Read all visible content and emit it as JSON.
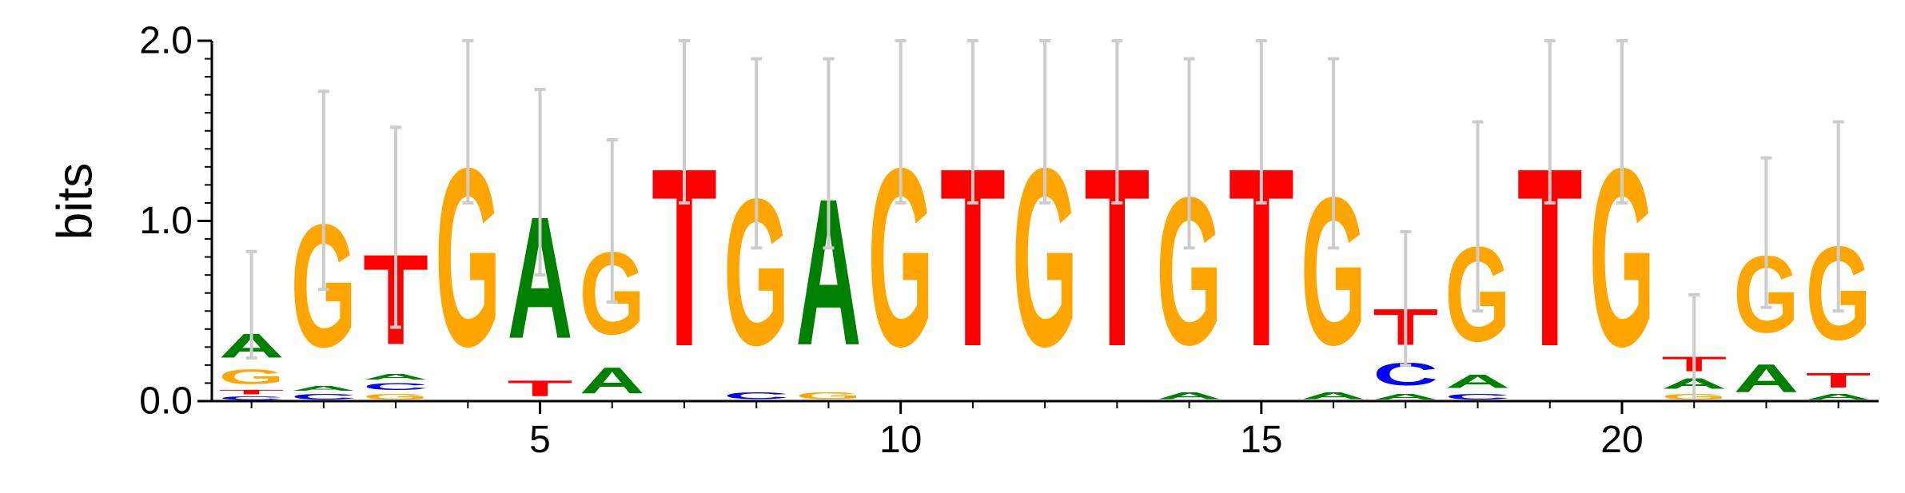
{
  "chart_data": {
    "type": "sequence-logo",
    "ylabel": "bits",
    "ylim": [
      0,
      2.0
    ],
    "yticks": [
      "0.0",
      "1.0",
      "2.0"
    ],
    "xticks": [
      5,
      10,
      15,
      20
    ],
    "colors": {
      "A": "#008000",
      "C": "#0000ff",
      "G": "#ffa500",
      "T": "#ff0000"
    },
    "error_bar_color": "#cccccc",
    "positions": [
      {
        "pos": 1,
        "letters": [
          {
            "l": "C",
            "h": 0.03
          },
          {
            "l": "T",
            "h": 0.04
          },
          {
            "l": "G",
            "h": 0.13
          },
          {
            "l": "A",
            "h": 0.21
          }
        ],
        "err": [
          0.24,
          0.83
        ]
      },
      {
        "pos": 2,
        "letters": [
          {
            "l": "C",
            "h": 0.05
          },
          {
            "l": "A",
            "h": 0.04
          },
          {
            "l": "G",
            "h": 1.09
          }
        ],
        "err": [
          0.62,
          1.72
        ]
      },
      {
        "pos": 3,
        "letters": [
          {
            "l": "G",
            "h": 0.05
          },
          {
            "l": "C",
            "h": 0.06
          },
          {
            "l": "A",
            "h": 0.05
          },
          {
            "l": "T",
            "h": 0.8
          }
        ],
        "err": [
          0.41,
          1.52
        ]
      },
      {
        "pos": 4,
        "letters": [
          {
            "l": "G",
            "h": 1.58
          }
        ],
        "err": [
          1.1,
          2.0
        ]
      },
      {
        "pos": 5,
        "letters": [
          {
            "l": "T",
            "h": 0.14
          },
          {
            "l": "A",
            "h": 1.08
          }
        ],
        "err": [
          0.7,
          1.73
        ]
      },
      {
        "pos": 6,
        "letters": [
          {
            "l": "A",
            "h": 0.23
          },
          {
            "l": "G",
            "h": 0.73
          }
        ],
        "err": [
          0.55,
          1.45
        ]
      },
      {
        "pos": 7,
        "letters": [
          {
            "l": "T",
            "h": 1.58
          }
        ],
        "err": [
          1.1,
          2.0
        ]
      },
      {
        "pos": 8,
        "letters": [
          {
            "l": "C",
            "h": 0.06
          },
          {
            "l": "G",
            "h": 1.3
          }
        ],
        "err": [
          0.85,
          1.9
        ]
      },
      {
        "pos": 9,
        "letters": [
          {
            "l": "G",
            "h": 0.06
          },
          {
            "l": "A",
            "h": 1.3
          }
        ],
        "err": [
          0.85,
          1.9
        ]
      },
      {
        "pos": 10,
        "letters": [
          {
            "l": "G",
            "h": 1.58
          }
        ],
        "err": [
          1.1,
          2.0
        ]
      },
      {
        "pos": 11,
        "letters": [
          {
            "l": "T",
            "h": 1.58
          }
        ],
        "err": [
          1.1,
          2.0
        ]
      },
      {
        "pos": 12,
        "letters": [
          {
            "l": "G",
            "h": 1.58
          }
        ],
        "err": [
          1.1,
          2.0
        ]
      },
      {
        "pos": 13,
        "letters": [
          {
            "l": "T",
            "h": 1.58
          }
        ],
        "err": [
          1.1,
          2.0
        ]
      },
      {
        "pos": 14,
        "letters": [
          {
            "l": "A",
            "h": 0.06
          },
          {
            "l": "G",
            "h": 1.31
          }
        ],
        "err": [
          0.85,
          1.9
        ]
      },
      {
        "pos": 15,
        "letters": [
          {
            "l": "T",
            "h": 1.58
          }
        ],
        "err": [
          1.1,
          2.0
        ]
      },
      {
        "pos": 16,
        "letters": [
          {
            "l": "A",
            "h": 0.06
          },
          {
            "l": "G",
            "h": 1.31
          }
        ],
        "err": [
          0.85,
          1.9
        ]
      },
      {
        "pos": 17,
        "letters": [
          {
            "l": "A",
            "h": 0.05
          },
          {
            "l": "C",
            "h": 0.2
          },
          {
            "l": "T",
            "h": 0.32
          }
        ],
        "err": [
          0.2,
          0.94
        ]
      },
      {
        "pos": 18,
        "letters": [
          {
            "l": "C",
            "h": 0.05
          },
          {
            "l": "A",
            "h": 0.12
          },
          {
            "l": "G",
            "h": 0.84
          }
        ],
        "err": [
          0.5,
          1.55
        ]
      },
      {
        "pos": 19,
        "letters": [
          {
            "l": "T",
            "h": 1.58
          }
        ],
        "err": [
          1.1,
          2.0
        ]
      },
      {
        "pos": 20,
        "letters": [
          {
            "l": "G",
            "h": 1.58
          }
        ],
        "err": [
          1.1,
          2.0
        ]
      },
      {
        "pos": 21,
        "letters": [
          {
            "l": "G",
            "h": 0.05
          },
          {
            "l": "A",
            "h": 0.09
          },
          {
            "l": "T",
            "h": 0.13
          }
        ],
        "err": [
          0.0,
          0.59
        ]
      },
      {
        "pos": 22,
        "letters": [
          {
            "l": "A",
            "h": 0.25
          },
          {
            "l": "G",
            "h": 0.68
          }
        ],
        "err": [
          0.52,
          1.35
        ]
      },
      {
        "pos": 23,
        "letters": [
          {
            "l": "A",
            "h": 0.05
          },
          {
            "l": "T",
            "h": 0.13
          },
          {
            "l": "G",
            "h": 0.83
          }
        ],
        "err": [
          0.5,
          1.55
        ]
      }
    ]
  }
}
